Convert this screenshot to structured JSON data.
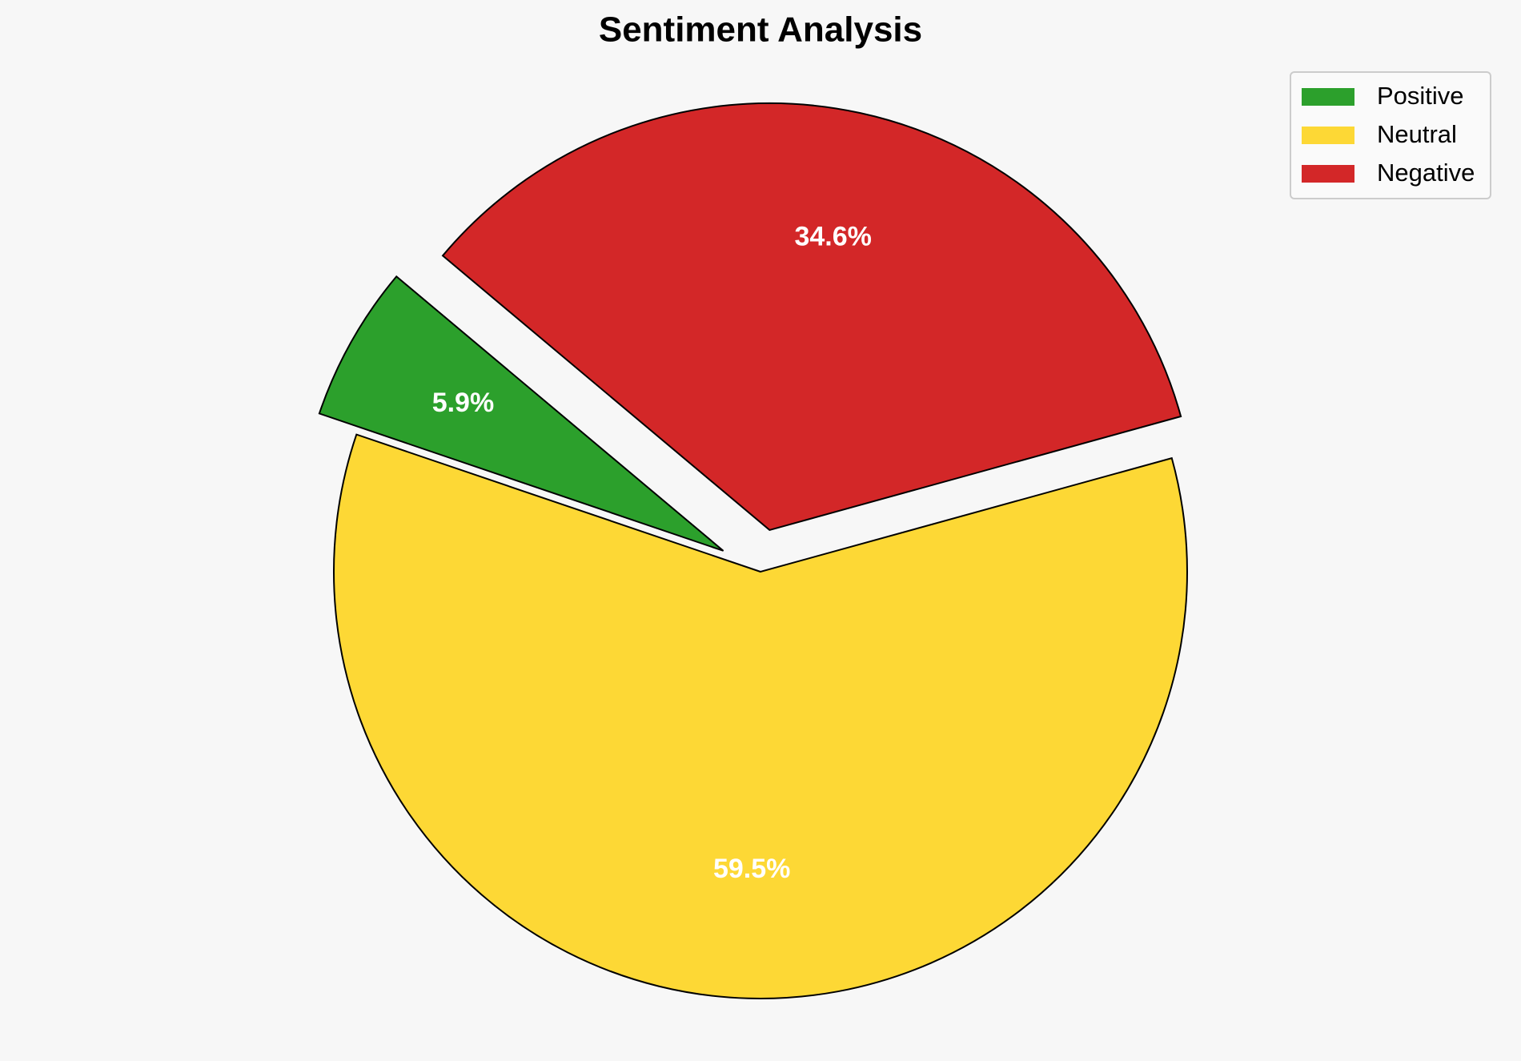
{
  "chart_data": {
    "type": "pie",
    "title": "Sentiment Analysis",
    "categories": [
      "Positive",
      "Neutral",
      "Negative"
    ],
    "values": [
      5.9,
      59.5,
      34.6
    ],
    "value_labels": [
      "5.9%",
      "59.5%",
      "34.6%"
    ],
    "colors": [
      "#2ca02c",
      "#fdd835",
      "#d32728"
    ],
    "explode": [
      0.1,
      0,
      0.1
    ],
    "startangle": 140,
    "legend": "upper right"
  }
}
